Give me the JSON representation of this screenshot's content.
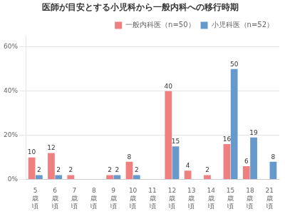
{
  "chart_data": {
    "type": "bar",
    "title": "医師が目安とする小児科から一般内科への移行時期",
    "categories": [
      "5\n歳\n頃",
      "6\n歳\n頃",
      "7\n歳\n頃",
      "8\n歳\n頃",
      "9\n歳\n頃",
      "10\n歳\n頃",
      "11\n歳\n頃",
      "12\n歳\n頃",
      "13\n歳\n頃",
      "14\n歳\n頃",
      "15\n歳\n頃",
      "18\n歳\n頃",
      "21\n歳\n頃"
    ],
    "series": [
      {
        "name": "一般内科医（n=50）",
        "color": "#f08080",
        "values": [
          10,
          12,
          2,
          0,
          2,
          8,
          0,
          40,
          4,
          2,
          16,
          6,
          0
        ],
        "value_labels": [
          "10",
          "12",
          "2",
          null,
          "2",
          "8",
          null,
          "40",
          "4",
          "2",
          "16",
          "6",
          null
        ]
      },
      {
        "name": "小児科医（n=52）",
        "color": "#6699cc",
        "values": [
          2,
          2,
          0,
          0,
          2,
          2,
          0,
          15,
          0,
          0,
          50,
          19,
          8
        ],
        "value_labels": [
          "2",
          "2",
          null,
          null,
          "2",
          "2",
          null,
          "15",
          null,
          null,
          "50",
          "19",
          "8"
        ]
      }
    ],
    "ylim": [
      0,
      65
    ],
    "yticks": [
      {
        "value": 0,
        "label": "0%"
      },
      {
        "value": 20,
        "label": "20%"
      },
      {
        "value": 40,
        "label": "40%"
      },
      {
        "value": 60,
        "label": "60%"
      }
    ],
    "grid": true,
    "legend": "upper right",
    "data_labels": true
  }
}
